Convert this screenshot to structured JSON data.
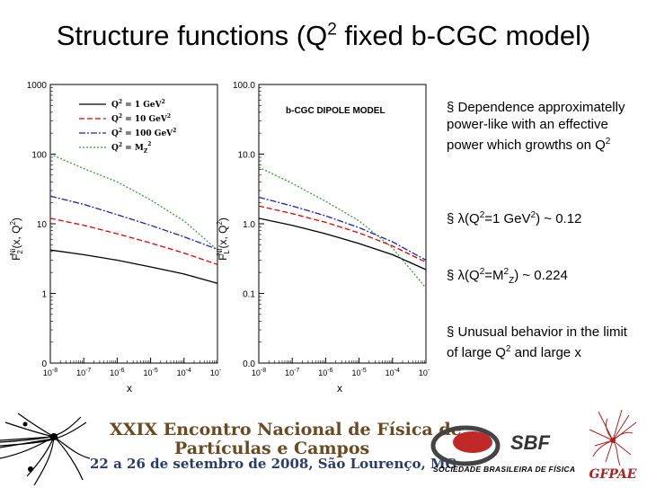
{
  "slide": {
    "title": {
      "pre": "Structure functions (Q",
      "sup": "2",
      "post": " fixed b-CGC model)"
    }
  },
  "plot_left": {
    "y_ticks": [
      "1000",
      "100",
      "10",
      "1",
      "0"
    ],
    "x_ticks": [
      {
        "b": "10",
        "e": "-8"
      },
      {
        "b": "10",
        "e": "-7"
      },
      {
        "b": "10",
        "e": "-6"
      },
      {
        "b": "10",
        "e": "-5"
      },
      {
        "b": "10",
        "e": "-4"
      },
      {
        "b": "10",
        "e": "-3"
      }
    ],
    "xlabel": "x",
    "ylabel": {
      "F": "F",
      "sub": "2",
      "sup": "Ni",
      "arg": "(x, Q",
      "arg_sup": "2",
      "close": ")"
    },
    "legend": [
      {
        "pre": "Q",
        "sup": "2",
        "post": " = 1 GeV",
        "post_sup": "2",
        "color": "#000000",
        "dash": ""
      },
      {
        "pre": "Q",
        "sup": "2",
        "post": " = 10 GeV",
        "post_sup": "2",
        "color": "#e00000",
        "dash": "6 3"
      },
      {
        "pre": "Q",
        "sup": "2",
        "post": " = 100 GeV",
        "post_sup": "2",
        "color": "#2020b0",
        "dash": "7 2 2 2"
      },
      {
        "pre": "Q",
        "sup": "2",
        "post": " = M",
        "post_sub": "Z",
        "post_sup": "2",
        "color": "#3a9a3a",
        "dash": "2 2"
      }
    ]
  },
  "plot_right": {
    "y_ticks": [
      "100.0",
      "10.0",
      "1.0",
      "0.1",
      "0.0"
    ],
    "x_ticks": [
      {
        "b": "10",
        "e": "-8"
      },
      {
        "b": "10",
        "e": "-7"
      },
      {
        "b": "10",
        "e": "-6"
      },
      {
        "b": "10",
        "e": "-5"
      },
      {
        "b": "10",
        "e": "-4"
      },
      {
        "b": "10",
        "e": "-3"
      }
    ],
    "xlabel": "x",
    "model_label": "b-CGC DIPOLE MODEL",
    "ylabel": {
      "F": "F",
      "sub": "L",
      "sup": "Ni",
      "arg": "(x, Q",
      "arg_sup": "2",
      "close": ")"
    }
  },
  "chart_data": [
    {
      "type": "line",
      "title": "",
      "xlabel": "x",
      "ylabel": "F2 Ni(x,Q2)",
      "xscale": "log",
      "yscale": "log",
      "xlim": [
        1e-08,
        0.001
      ],
      "x": [
        1e-08,
        1e-07,
        1e-06,
        1e-05,
        0.0001,
        0.001
      ],
      "series": [
        {
          "name": "Q2 = 1 GeV2",
          "color": "#000000",
          "values": [
            4.2,
            3.6,
            3.0,
            2.4,
            1.9,
            1.4
          ]
        },
        {
          "name": "Q2 = 10 GeV2",
          "color": "#e00000",
          "values": [
            12.0,
            9.5,
            7.2,
            5.3,
            3.8,
            2.6
          ]
        },
        {
          "name": "Q2 = 100 GeV2",
          "color": "#2020b0",
          "values": [
            25.0,
            19.0,
            13.5,
            9.5,
            6.5,
            4.3
          ]
        },
        {
          "name": "Q2 = MZ2",
          "color": "#3a9a3a",
          "values": [
            100.0,
            62.0,
            40.0,
            22.0,
            11.0,
            4.2
          ]
        }
      ],
      "grid": false,
      "legend": "top-left"
    },
    {
      "type": "line",
      "title": "b-CGC DIPOLE MODEL",
      "xlabel": "x",
      "ylabel": "FL Ni(x,Q2)",
      "xscale": "log",
      "yscale": "log",
      "xlim": [
        1e-08,
        0.001
      ],
      "x": [
        1e-08,
        1e-07,
        1e-06,
        1e-05,
        0.0001,
        0.001
      ],
      "series": [
        {
          "name": "Q2 = 1 GeV2",
          "color": "#000000",
          "values": [
            1.2,
            0.95,
            0.72,
            0.52,
            0.36,
            0.22
          ]
        },
        {
          "name": "Q2 = 10 GeV2",
          "color": "#e00000",
          "values": [
            1.8,
            1.4,
            1.05,
            0.74,
            0.48,
            0.28
          ]
        },
        {
          "name": "Q2 = 100 GeV2",
          "color": "#2020b0",
          "values": [
            2.4,
            1.8,
            1.3,
            0.88,
            0.55,
            0.3
          ]
        },
        {
          "name": "Q2 = MZ2",
          "color": "#3a9a3a",
          "values": [
            6.5,
            3.8,
            2.1,
            1.1,
            0.45,
            0.12
          ]
        }
      ],
      "grid": false,
      "legend": "none"
    }
  ],
  "bullets": [
    {
      "marker": "§",
      "segments": [
        {
          "t": " Dependence approximatelly power-like with an effective power which growths on Q"
        },
        {
          "t": "2",
          "tag": "sup"
        }
      ]
    },
    {
      "marker": "§",
      "segments": [
        {
          "t": " λ(Q"
        },
        {
          "t": "2",
          "tag": "sup"
        },
        {
          "t": "=1 GeV"
        },
        {
          "t": "2",
          "tag": "sup"
        },
        {
          "t": ") ~ 0.12"
        }
      ]
    },
    {
      "marker": "§",
      "segments": [
        {
          "t": " λ(Q"
        },
        {
          "t": "2",
          "tag": "sup"
        },
        {
          "t": "=M"
        },
        {
          "t": "2",
          "tag": "sup"
        },
        {
          "t": "Z",
          "tag": "sub"
        },
        {
          "t": ") ~ 0.224"
        }
      ]
    },
    {
      "marker": "§",
      "segments": [
        {
          "t": " Unusual behavior in the limit of large Q"
        },
        {
          "t": "2",
          "tag": "sup"
        },
        {
          "t": " and large x"
        }
      ]
    }
  ],
  "footer": {
    "conference_line1": "XXIX Encontro Nacional de Física de",
    "conference_line2": "Partículas e Campos",
    "conference_line3": "22 a 26 de setembro de 2008, São Lourenço, MG",
    "sbf_logo": "SBF",
    "sbf_name": "SOCIEDADE BRASILEIRA DE FÍSICA",
    "gfpae_logo": "GFPAE",
    "colors": {
      "conference_text": "#6a4a20",
      "date_text": "#2a3a6a",
      "sbf_red": "#c0282a",
      "gfpae_red": "#b02020"
    }
  }
}
